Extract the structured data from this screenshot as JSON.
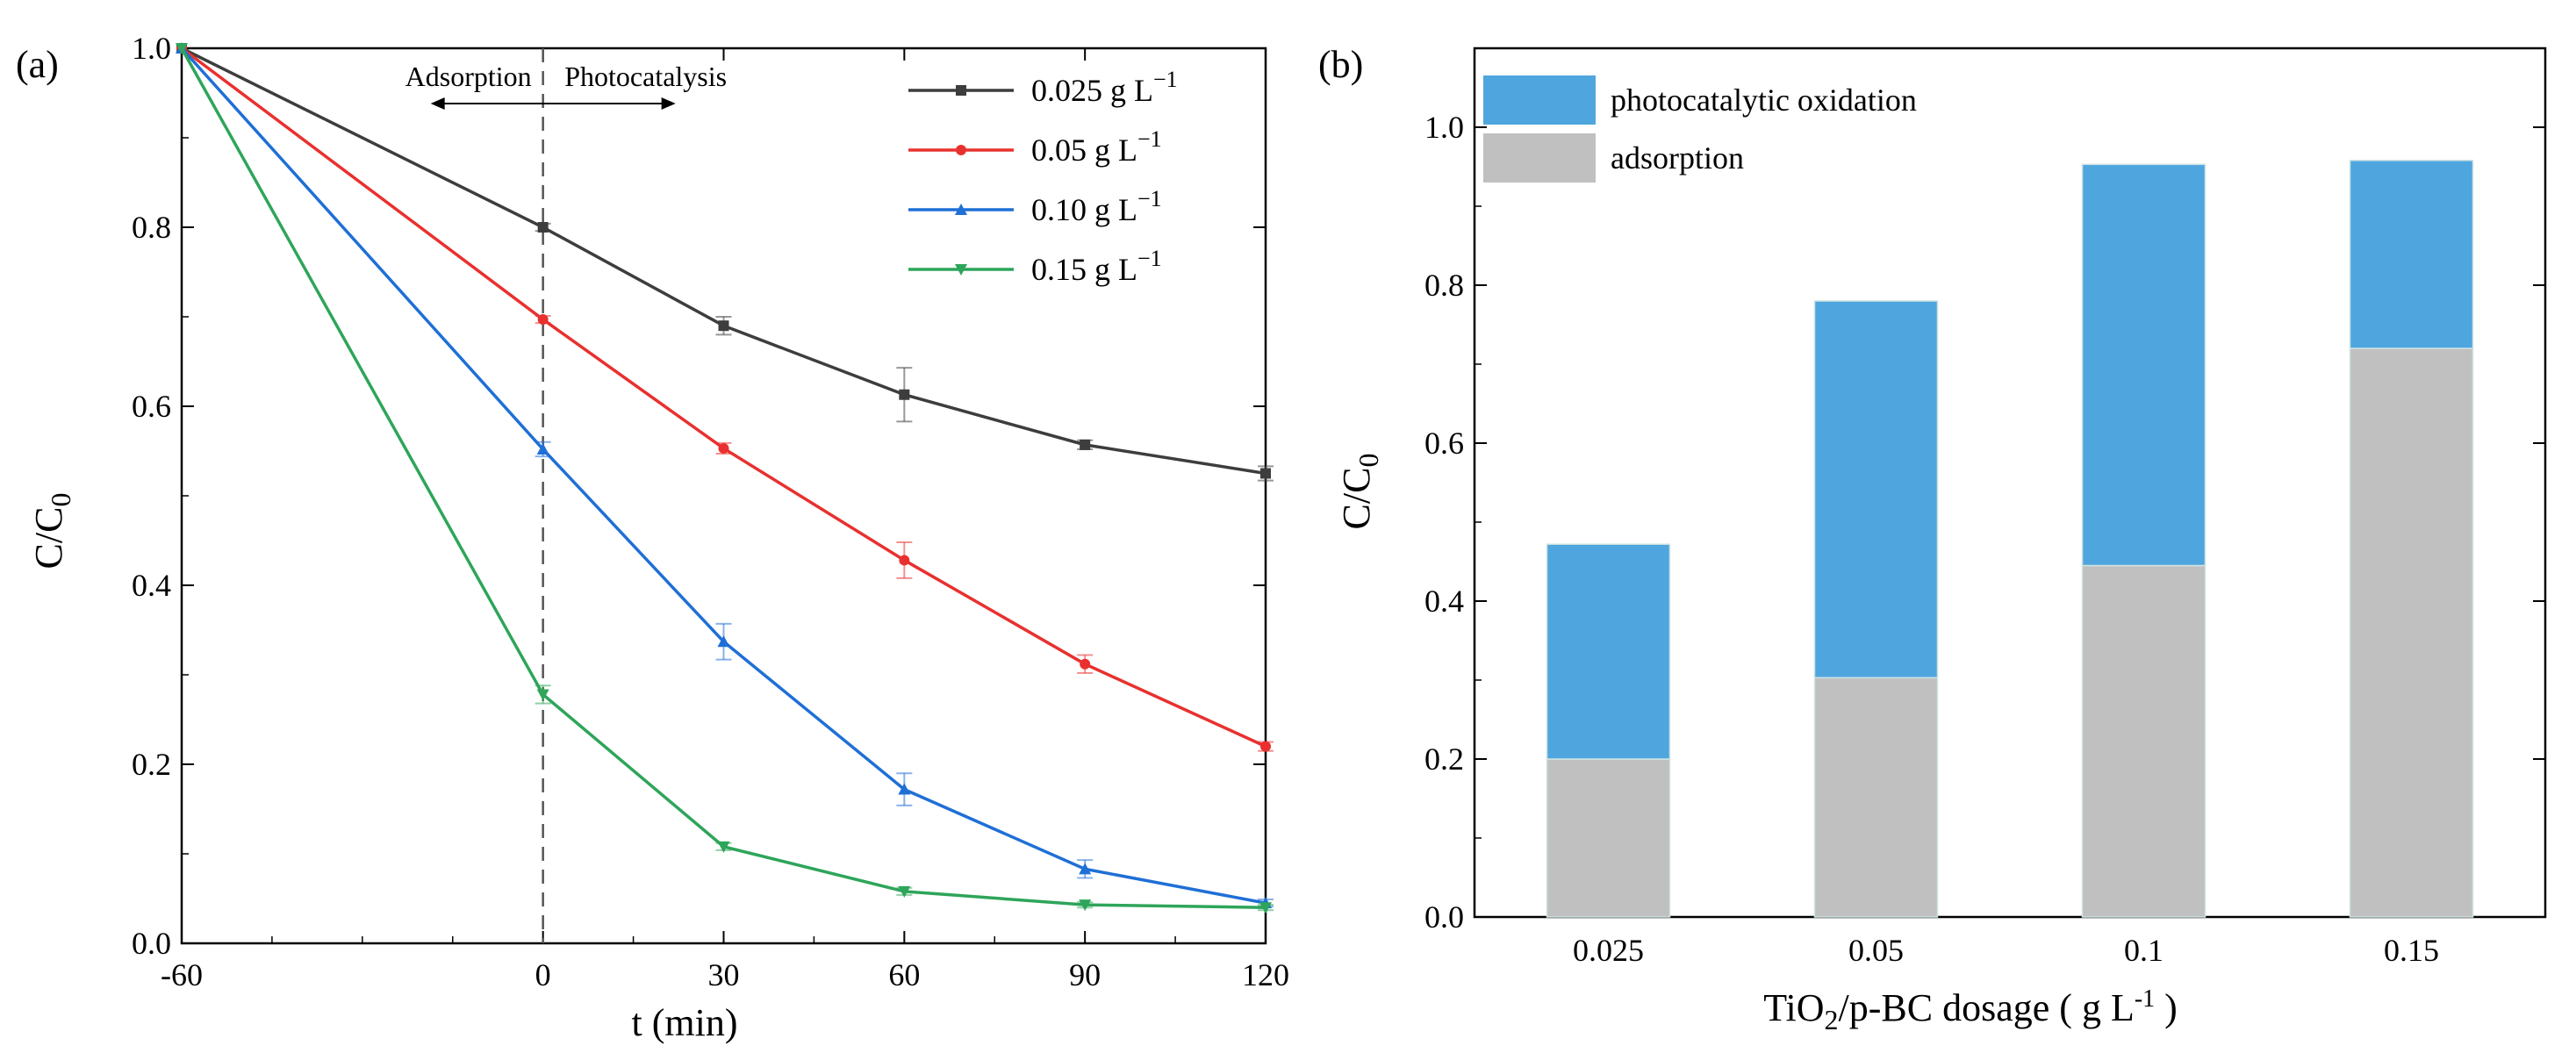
{
  "chart_data": [
    {
      "panel_label": "(a)",
      "type": "line",
      "xlabel": "t (min)",
      "ylabel": {
        "main": "C/C",
        "sub": "0"
      },
      "x_ticks": [
        "-60",
        "0",
        "30",
        "60",
        "90",
        "120"
      ],
      "x_tick_values": [
        -60,
        0,
        30,
        60,
        90,
        120
      ],
      "y_ticks": [
        "0.0",
        "0.2",
        "0.4",
        "0.6",
        "0.8",
        "1.0"
      ],
      "y_tick_values": [
        0,
        0.2,
        0.4,
        0.6,
        0.8,
        1.0
      ],
      "xlim": [
        -60,
        120
      ],
      "ylim": [
        0,
        1.0
      ],
      "annotations": {
        "divider_x": 0,
        "left_label": "Adsorption",
        "right_label": "Photocatalysis"
      },
      "x": [
        -60,
        0,
        30,
        60,
        90,
        120
      ],
      "series": [
        {
          "name": "0.025 g L",
          "unit_sup": "−1",
          "color": "#3d3d3d",
          "marker": "square",
          "values": [
            1.0,
            0.8,
            0.69,
            0.613,
            0.557,
            0.525
          ],
          "errors": [
            0,
            0.004,
            0.01,
            0.03,
            0.005,
            0.008
          ]
        },
        {
          "name": "0.05 g L",
          "unit_sup": "−1",
          "color": "#e8312f",
          "marker": "circle",
          "values": [
            1.0,
            0.697,
            0.553,
            0.428,
            0.312,
            0.22
          ],
          "errors": [
            0,
            0.004,
            0.006,
            0.02,
            0.01,
            0.005
          ]
        },
        {
          "name": "0.10 g L",
          "unit_sup": "−1",
          "color": "#1f6fd6",
          "marker": "triangle-up",
          "values": [
            1.0,
            0.552,
            0.337,
            0.172,
            0.083,
            0.045
          ],
          "errors": [
            0,
            0.008,
            0.02,
            0.018,
            0.01,
            0.004
          ]
        },
        {
          "name": "0.15 g L",
          "unit_sup": "−1",
          "color": "#2ea55a",
          "marker": "triangle-down",
          "values": [
            1.0,
            0.278,
            0.108,
            0.058,
            0.043,
            0.04
          ],
          "errors": [
            0,
            0.01,
            0.004,
            0.004,
            0.003,
            0.003
          ]
        }
      ]
    },
    {
      "panel_label": "(b)",
      "type": "bar",
      "stacked": true,
      "xlabel": {
        "pre": "TiO",
        "sub": "2",
        "mid": "/p-BC dosage ( g L",
        "sup": "-1",
        "post": " )"
      },
      "ylabel": {
        "main": "C/C",
        "sub": "0"
      },
      "categories": [
        "0.025",
        "0.05",
        "0.1",
        "0.15"
      ],
      "y_ticks": [
        "0.0",
        "0.2",
        "0.4",
        "0.6",
        "0.8",
        "1.0"
      ],
      "y_tick_values": [
        0,
        0.2,
        0.4,
        0.6,
        0.8,
        1.0
      ],
      "ylim": [
        0,
        1.1
      ],
      "series": [
        {
          "name": "adsorption",
          "color": "#c0c0c0",
          "values": [
            0.2,
            0.303,
            0.445,
            0.72
          ]
        },
        {
          "name": "photocatalytic oxidation",
          "color": "#4fa6de",
          "values": [
            0.272,
            0.477,
            0.508,
            0.238
          ]
        }
      ],
      "legend_order": [
        "photocatalytic oxidation",
        "adsorption"
      ]
    }
  ]
}
